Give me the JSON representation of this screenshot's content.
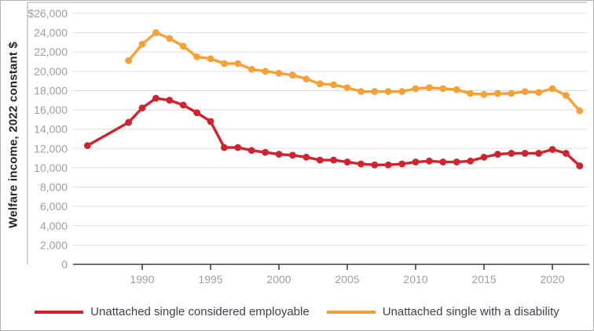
{
  "chart_data": {
    "type": "line",
    "title": "",
    "xlabel": "",
    "ylabel": "Welfare income, 2022 constant $",
    "ylim": [
      0,
      26000
    ],
    "xlim": [
      1985.5,
      2023
    ],
    "grid": "horizontal",
    "legend_position": "bottom",
    "colors": {
      "grid": "#dedede",
      "plot_border": "#a8a8a8",
      "axis": "#404040",
      "tick_label": "#9e9e9e",
      "legend_text": "#3b444c"
    },
    "y_ticks": {
      "values": [
        26000,
        24000,
        22000,
        20000,
        18000,
        16000,
        14000,
        12000,
        10000,
        8000,
        6000,
        4000,
        2000,
        0
      ],
      "labels": [
        "$26,000",
        "24,000",
        "22,000",
        "20,000",
        "18,000",
        "16,000",
        "14,000",
        "12,000",
        "10,000",
        "8,000",
        "6,000",
        "4,000",
        "2,000",
        "0"
      ]
    },
    "x_ticks": {
      "values": [
        1990,
        1995,
        2000,
        2005,
        2010,
        2015,
        2020
      ],
      "labels": [
        "1990",
        "1995",
        "2000",
        "2005",
        "2010",
        "2015",
        "2020"
      ]
    },
    "series": [
      {
        "name": "Unattached single considered employable",
        "color": "#D0232E",
        "x": [
          1986,
          1989,
          1990,
          1991,
          1992,
          1993,
          1994,
          1995,
          1996,
          1997,
          1998,
          1999,
          2000,
          2001,
          2002,
          2003,
          2004,
          2005,
          2006,
          2007,
          2008,
          2009,
          2010,
          2011,
          2012,
          2013,
          2014,
          2015,
          2016,
          2017,
          2018,
          2019,
          2020,
          2021,
          2022
        ],
        "y": [
          12300,
          14700,
          16200,
          17200,
          17000,
          16500,
          15700,
          14800,
          12100,
          12100,
          11800,
          11600,
          11400,
          11300,
          11100,
          10800,
          10800,
          10600,
          10400,
          10300,
          10300,
          10400,
          10600,
          10700,
          10600,
          10600,
          10700,
          11100,
          11400,
          11500,
          11500,
          11500,
          11900,
          11500,
          10200
        ]
      },
      {
        "name": "Unattached single with a disability",
        "color": "#F6A038",
        "x": [
          1989,
          1990,
          1991,
          1992,
          1993,
          1994,
          1995,
          1996,
          1997,
          1998,
          1999,
          2000,
          2001,
          2002,
          2003,
          2004,
          2005,
          2006,
          2007,
          2008,
          2009,
          2010,
          2011,
          2012,
          2013,
          2014,
          2015,
          2016,
          2017,
          2018,
          2019,
          2020,
          2021,
          2022
        ],
        "y": [
          21100,
          22800,
          24000,
          23400,
          22600,
          21500,
          21300,
          20800,
          20800,
          20200,
          20000,
          19800,
          19600,
          19200,
          18700,
          18600,
          18300,
          17900,
          17900,
          17900,
          17900,
          18200,
          18300,
          18200,
          18100,
          17700,
          17600,
          17700,
          17700,
          17900,
          17800,
          18200,
          17500,
          15900
        ]
      }
    ]
  }
}
